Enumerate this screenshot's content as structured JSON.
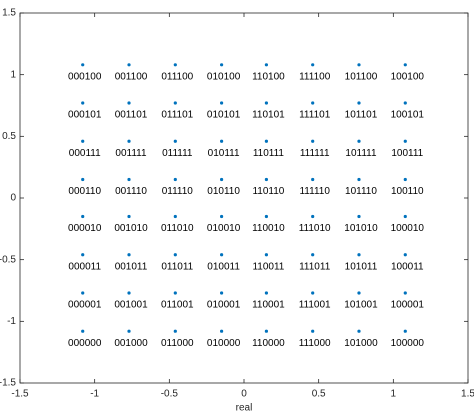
{
  "chart_data": {
    "type": "scatter",
    "x_label": "real",
    "xlim": [
      -1.5,
      1.5
    ],
    "ylim": [
      -1.5,
      1.5
    ],
    "xticks": [
      -1.5,
      -1,
      -0.5,
      0,
      0.5,
      1,
      1.5
    ],
    "yticks": [
      -1.5,
      -1,
      -0.5,
      0,
      0.5,
      1,
      1.5
    ],
    "grid": false,
    "series": [
      {
        "color": "#0072bd",
        "x": [
          -1.08,
          -0.77,
          -0.46,
          -0.15,
          0.15,
          0.46,
          0.77,
          1.08,
          -1.08,
          -0.77,
          -0.46,
          -0.15,
          0.15,
          0.46,
          0.77,
          1.08,
          -1.08,
          -0.77,
          -0.46,
          -0.15,
          0.15,
          0.46,
          0.77,
          1.08,
          -1.08,
          -0.77,
          -0.46,
          -0.15,
          0.15,
          0.46,
          0.77,
          1.08,
          -1.08,
          -0.77,
          -0.46,
          -0.15,
          0.15,
          0.46,
          0.77,
          1.08,
          -1.08,
          -0.77,
          -0.46,
          -0.15,
          0.15,
          0.46,
          0.77,
          1.08,
          -1.08,
          -0.77,
          -0.46,
          -0.15,
          0.15,
          0.46,
          0.77,
          1.08,
          -1.08,
          -0.77,
          -0.46,
          -0.15,
          0.15,
          0.46,
          0.77,
          1.08
        ],
        "values": [
          1.08,
          1.08,
          1.08,
          1.08,
          1.08,
          1.08,
          1.08,
          1.08,
          0.77,
          0.77,
          0.77,
          0.77,
          0.77,
          0.77,
          0.77,
          0.77,
          0.46,
          0.46,
          0.46,
          0.46,
          0.46,
          0.46,
          0.46,
          0.46,
          0.15,
          0.15,
          0.15,
          0.15,
          0.15,
          0.15,
          0.15,
          0.15,
          -0.15,
          -0.15,
          -0.15,
          -0.15,
          -0.15,
          -0.15,
          -0.15,
          -0.15,
          -0.46,
          -0.46,
          -0.46,
          -0.46,
          -0.46,
          -0.46,
          -0.46,
          -0.46,
          -0.77,
          -0.77,
          -0.77,
          -0.77,
          -0.77,
          -0.77,
          -0.77,
          -0.77,
          -1.08,
          -1.08,
          -1.08,
          -1.08,
          -1.08,
          -1.08,
          -1.08,
          -1.08
        ],
        "point_labels": [
          "000100",
          "001100",
          "011100",
          "010100",
          "110100",
          "111100",
          "101100",
          "100100",
          "000101",
          "001101",
          "011101",
          "010101",
          "110101",
          "111101",
          "101101",
          "100101",
          "000111",
          "001111",
          "011111",
          "010111",
          "110111",
          "111111",
          "101111",
          "100111",
          "000110",
          "001110",
          "011110",
          "010110",
          "110110",
          "111110",
          "101110",
          "100110",
          "000010",
          "001010",
          "011010",
          "010010",
          "110010",
          "111010",
          "101010",
          "100010",
          "000011",
          "001011",
          "011011",
          "010011",
          "110011",
          "111011",
          "101011",
          "100011",
          "000001",
          "001001",
          "011001",
          "010001",
          "110001",
          "111001",
          "101001",
          "100001",
          "000000",
          "001000",
          "011000",
          "010000",
          "110000",
          "111000",
          "101000",
          "100000"
        ]
      }
    ]
  }
}
